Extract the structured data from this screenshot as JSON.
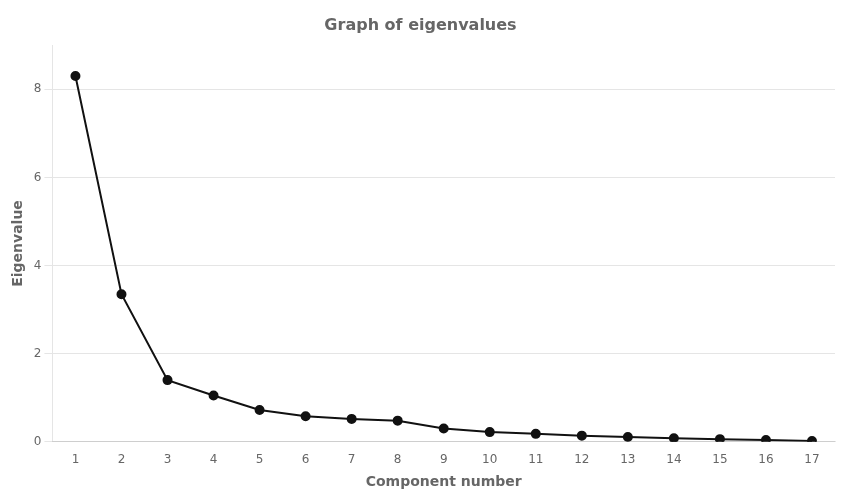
{
  "chart_data": {
    "type": "line",
    "title": "Graph of eigenvalues",
    "xlabel": "Component number",
    "ylabel": "Eigenvalue",
    "x": [
      1,
      2,
      3,
      4,
      5,
      6,
      7,
      8,
      9,
      10,
      11,
      12,
      13,
      14,
      15,
      16,
      17
    ],
    "values": [
      8.3,
      3.35,
      1.4,
      1.05,
      0.72,
      0.58,
      0.52,
      0.48,
      0.3,
      0.22,
      0.18,
      0.14,
      0.11,
      0.08,
      0.06,
      0.04,
      0.02
    ],
    "color": "#111111",
    "marker": "circle",
    "xlim": [
      0.5,
      17.5
    ],
    "xticks": [
      1,
      2,
      3,
      4,
      5,
      6,
      7,
      8,
      9,
      10,
      11,
      12,
      13,
      14,
      15,
      16,
      17
    ],
    "ylim": [
      0,
      9
    ],
    "yticks": [
      0,
      2,
      4,
      6,
      8
    ],
    "grid": "y"
  }
}
